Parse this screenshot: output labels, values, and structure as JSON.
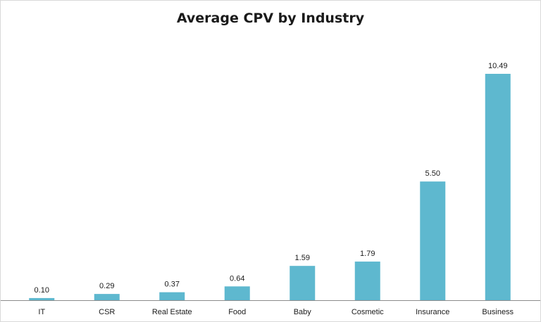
{
  "chart_data": {
    "type": "bar",
    "title": "Average CPV by Industry",
    "xlabel": "",
    "ylabel": "",
    "categories": [
      "IT",
      "CSR",
      "Real Estate",
      "Food",
      "Baby",
      "Cosmetic",
      "Insurance",
      "Business"
    ],
    "values": [
      0.1,
      0.29,
      0.37,
      0.64,
      1.59,
      1.79,
      5.5,
      10.49
    ],
    "value_labels": [
      "0.10",
      "0.29",
      "0.37",
      "0.64",
      "1.59",
      "1.79",
      "5.50",
      "10.49"
    ],
    "ylim": [
      0,
      10.49
    ],
    "grid": false,
    "legend": "none",
    "bar_color": "#5EB8CF",
    "axis_color": "#8c8c8c",
    "text_color": "#1a1a1a"
  }
}
